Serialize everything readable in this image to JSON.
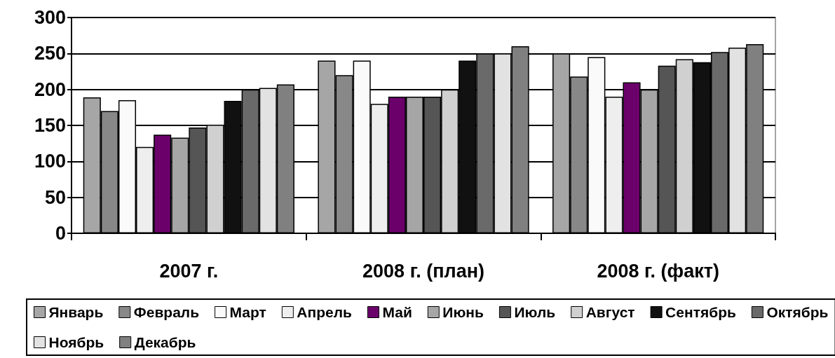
{
  "chart_data": {
    "type": "bar",
    "categories": [
      "2007 г.",
      "2008 г. (план)",
      "2008 г. (факт)"
    ],
    "ylim": [
      0,
      300
    ],
    "yticks": [
      0,
      50,
      100,
      150,
      200,
      250,
      300
    ],
    "grid": "y",
    "legend": "bottom",
    "series": [
      {
        "name": "Январь",
        "color": "#a6a6a6",
        "values": [
          189,
          240,
          250
        ]
      },
      {
        "name": "Февраль",
        "color": "#888888",
        "values": [
          170,
          220,
          218
        ]
      },
      {
        "name": "Март",
        "color": "#fafafa",
        "values": [
          185,
          240,
          245
        ]
      },
      {
        "name": "Апрель",
        "color": "#eeeeee",
        "values": [
          120,
          180,
          190
        ]
      },
      {
        "name": "Май",
        "color": "#6b006b",
        "values": [
          137,
          190,
          210
        ]
      },
      {
        "name": "Июнь",
        "color": "#a6a6a6",
        "values": [
          133,
          190,
          200
        ]
      },
      {
        "name": "Июль",
        "color": "#555555",
        "values": [
          147,
          190,
          233
        ]
      },
      {
        "name": "Август",
        "color": "#d0d0d0",
        "values": [
          151,
          200,
          242
        ]
      },
      {
        "name": "Сентябрь",
        "color": "#111111",
        "values": [
          184,
          240,
          238
        ]
      },
      {
        "name": "Октябрь",
        "color": "#6a6a6a",
        "values": [
          200,
          250,
          252
        ]
      },
      {
        "name": "Ноябрь",
        "color": "#e2e2e2",
        "values": [
          202,
          250,
          258
        ]
      },
      {
        "name": "Декабрь",
        "color": "#808080",
        "values": [
          207,
          260,
          263
        ]
      }
    ]
  }
}
